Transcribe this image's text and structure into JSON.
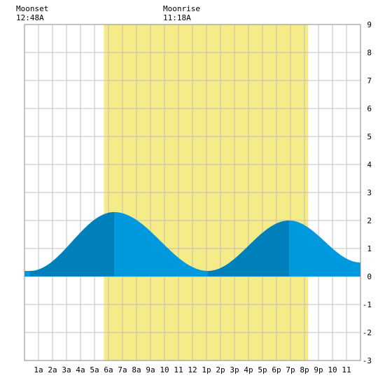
{
  "chart_data": {
    "type": "area",
    "title": "",
    "xlabel": "",
    "ylabel": "",
    "x_unit": "hours",
    "xlim": [
      0,
      24
    ],
    "ylim": [
      -3,
      9
    ],
    "x_ticks": [
      {
        "value": 1,
        "label": "1a"
      },
      {
        "value": 2,
        "label": "2a"
      },
      {
        "value": 3,
        "label": "3a"
      },
      {
        "value": 4,
        "label": "4a"
      },
      {
        "value": 5,
        "label": "5a"
      },
      {
        "value": 6,
        "label": "6a"
      },
      {
        "value": 7,
        "label": "7a"
      },
      {
        "value": 8,
        "label": "8a"
      },
      {
        "value": 9,
        "label": "9a"
      },
      {
        "value": 10,
        "label": "10"
      },
      {
        "value": 11,
        "label": "11"
      },
      {
        "value": 12,
        "label": "12"
      },
      {
        "value": 13,
        "label": "1p"
      },
      {
        "value": 14,
        "label": "2p"
      },
      {
        "value": 15,
        "label": "3p"
      },
      {
        "value": 16,
        "label": "4p"
      },
      {
        "value": 17,
        "label": "5p"
      },
      {
        "value": 18,
        "label": "6p"
      },
      {
        "value": 19,
        "label": "7p"
      },
      {
        "value": 20,
        "label": "8p"
      },
      {
        "value": 21,
        "label": "9p"
      },
      {
        "value": 22,
        "label": "10"
      },
      {
        "value": 23,
        "label": "11"
      }
    ],
    "y_ticks": [
      -3,
      -2,
      -1,
      0,
      1,
      2,
      3,
      4,
      5,
      6,
      7,
      8,
      9
    ],
    "grid": true,
    "daylight": {
      "start": 5.67,
      "end": 20.27
    },
    "extremes": [
      {
        "x": 0.4,
        "y": 0.2,
        "kind": "low"
      },
      {
        "x": 6.4,
        "y": 2.3,
        "kind": "high"
      },
      {
        "x": 13.1,
        "y": 0.2,
        "kind": "low"
      },
      {
        "x": 18.9,
        "y": 2.0,
        "kind": "high"
      },
      {
        "x": 24.0,
        "y": 0.5,
        "kind": "low"
      }
    ],
    "series": [
      {
        "name": "",
        "values_at": "hourly"
      }
    ],
    "moon_events": [
      {
        "label": "Moonset",
        "time": "12:48A",
        "x": 0.8
      },
      {
        "label": "Moonrise",
        "time": "11:18A",
        "x": 11.3
      }
    ],
    "colors": {
      "daylight": "#f5ec87",
      "tide_light": "#0099dd",
      "tide_dark": "#0080bb",
      "grid": "#c0c0c0",
      "background": "#ffffff"
    }
  }
}
